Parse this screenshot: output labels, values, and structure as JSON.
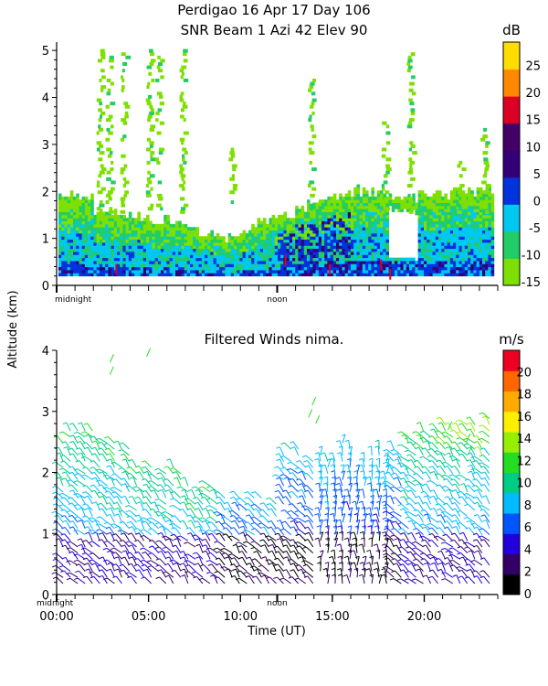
{
  "header": {
    "title_line1": "Perdigao  16 Apr 17 Day 106",
    "title_line2": "SNR Beam 1 Azi  42 Elev 90"
  },
  "y_axis_label": "Altitude (km)",
  "chart_data": [
    {
      "type": "heatmap",
      "title": "SNR Beam 1 Azi  42 Elev 90",
      "ylabel": "Altitude (km)",
      "ylim": [
        0,
        5.1
      ],
      "yticks": [
        "0",
        "1",
        "2",
        "3",
        "4",
        "5"
      ],
      "xlim_hours": [
        0,
        24
      ],
      "x_markers": [
        {
          "label": "midnight",
          "hour": 0
        },
        {
          "label": "noon",
          "hour": 12
        }
      ],
      "colorbar": {
        "unit": "dB",
        "ticks": [
          "-15",
          "-10",
          "-5",
          "0",
          "5",
          "10",
          "15",
          "20",
          "25"
        ],
        "range": [
          -15,
          30
        ],
        "colors": [
          "#7ee000",
          "#22cc66",
          "#00c8f0",
          "#0033dd",
          "#330077",
          "#440066",
          "#dd0022",
          "#ff8800",
          "#ffdd00"
        ]
      }
    },
    {
      "type": "scatter",
      "title": "Filtered Winds nima.",
      "xlabel": "Time (UT)",
      "ylabel": "Altitude (km)",
      "ylim": [
        0,
        4.1
      ],
      "yticks": [
        "0",
        "1",
        "2",
        "3",
        "4"
      ],
      "xlim_hours": [
        0,
        24
      ],
      "xticks": [
        "00:00",
        "05:00",
        "10:00",
        "15:00",
        "20:00"
      ],
      "x_markers": [
        {
          "label": "midnight",
          "hour": 0
        },
        {
          "label": "noon",
          "hour": 12
        }
      ],
      "colorbar": {
        "unit": "m/s",
        "ticks": [
          "0",
          "2",
          "4",
          "6",
          "8",
          "10",
          "12",
          "14",
          "16",
          "18",
          "20"
        ],
        "range": [
          0,
          22
        ],
        "colors": [
          "#000000",
          "#330066",
          "#2200dd",
          "#0055ff",
          "#00bbff",
          "#00cc88",
          "#22dd22",
          "#99ee00",
          "#ffee00",
          "#ffaa00",
          "#ff6600",
          "#ee0022"
        ]
      }
    }
  ]
}
